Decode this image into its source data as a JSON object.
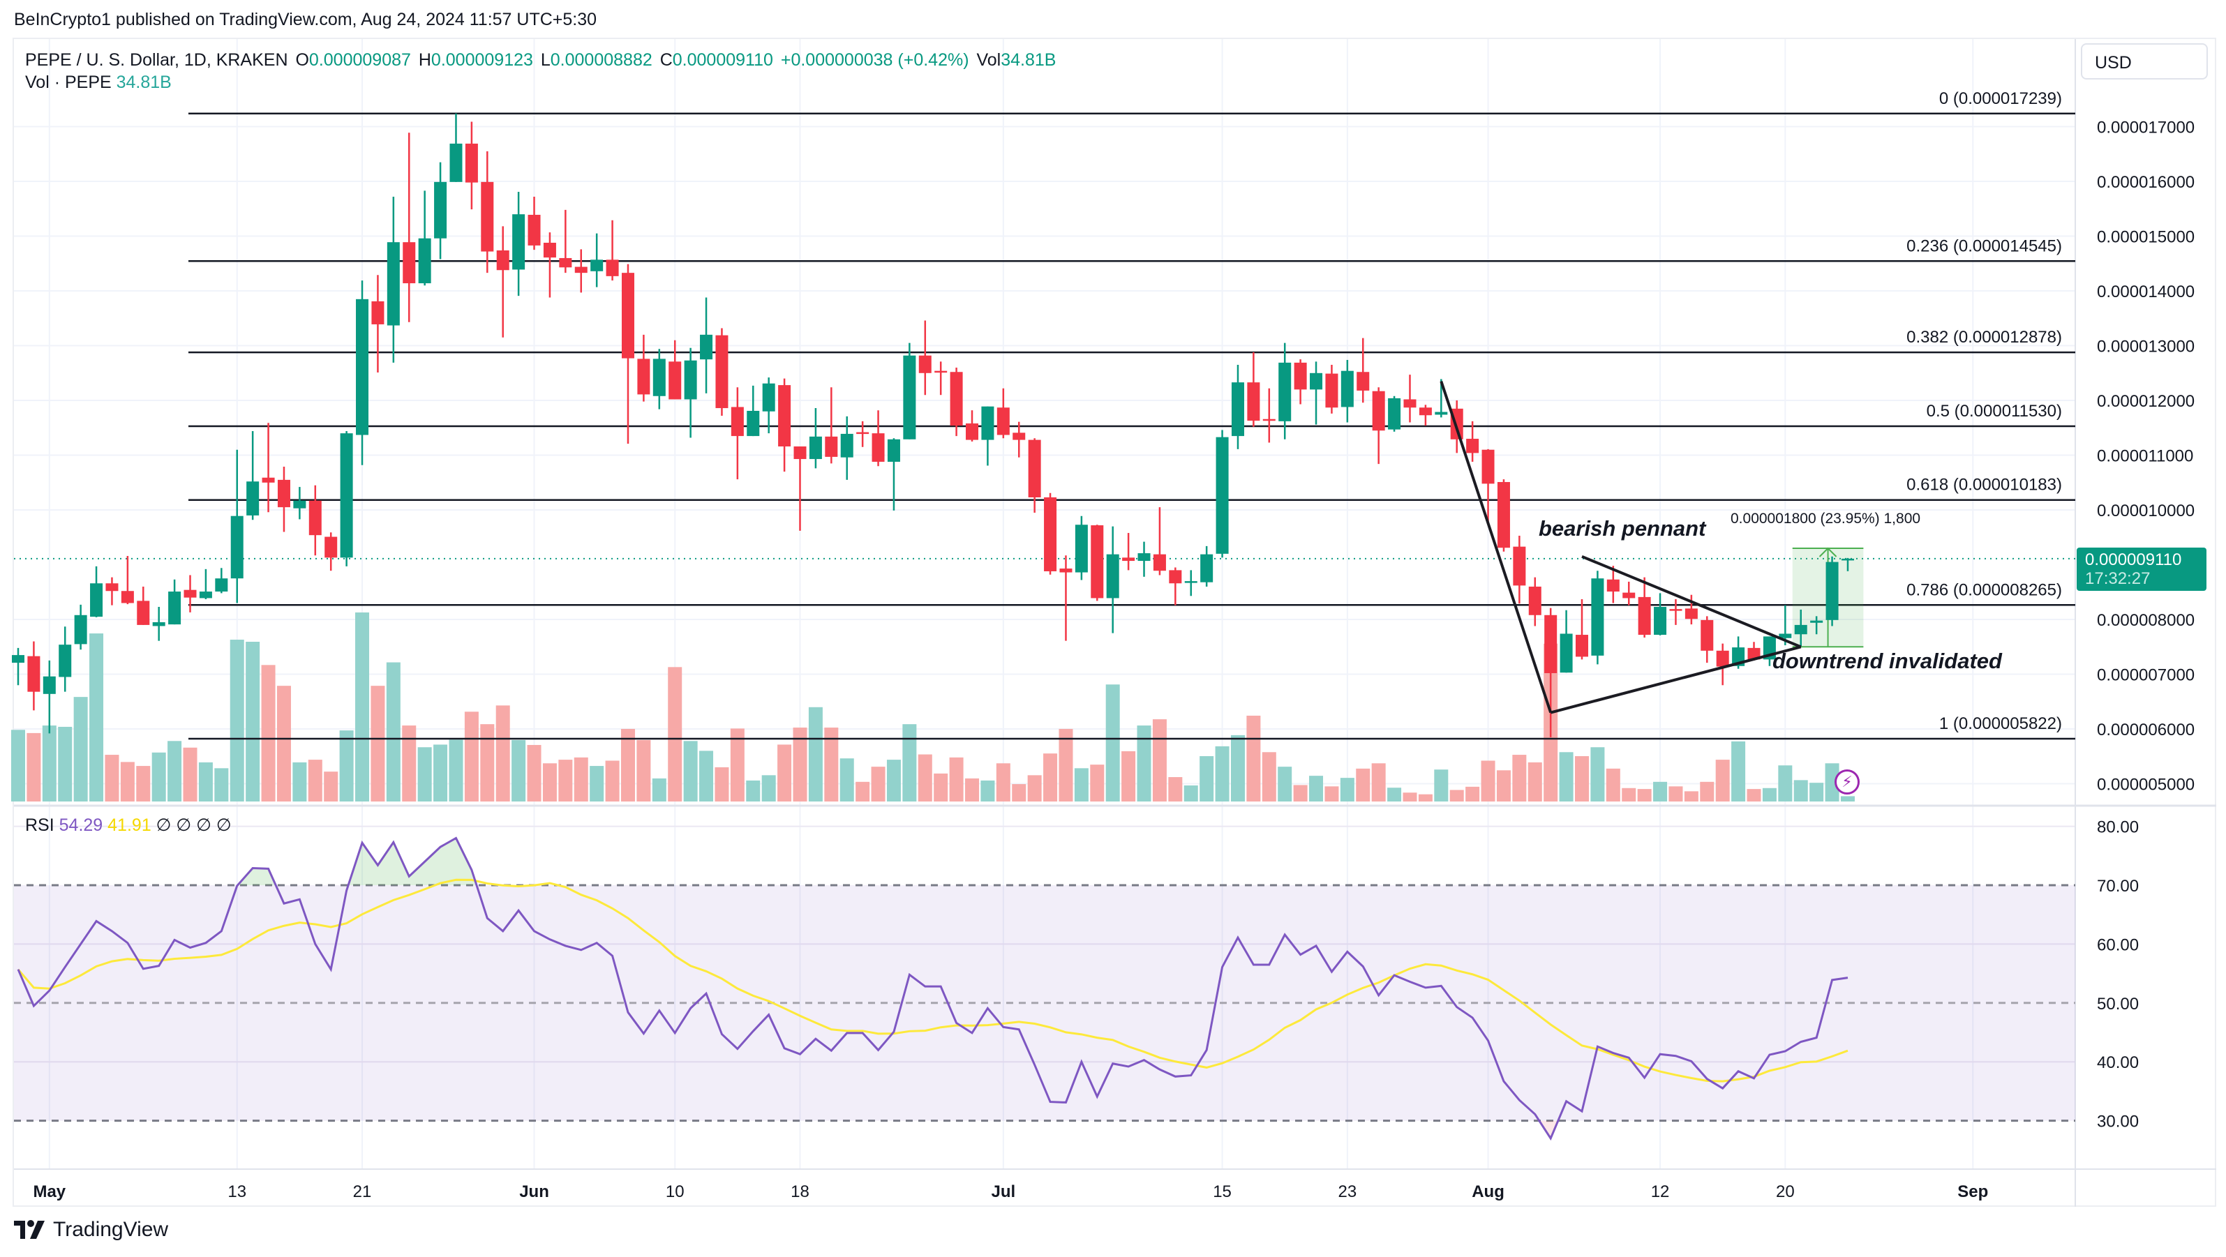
{
  "header": {
    "publish_line": "BeInCrypto1 published on TradingView.com, Aug 24, 2024 11:57 UTC+5:30",
    "symbol": "PEPE / U. S. Dollar, 1D, KRAKEN",
    "o_label": "O",
    "o_value": "0.000009087",
    "h_label": "H",
    "h_value": "0.000009123",
    "l_label": "L",
    "l_value": "0.000008882",
    "c_label": "C",
    "c_value": "0.000009110",
    "change": "+0.000000038 (+0.42%)",
    "vol_label": "Vol",
    "vol_value": "34.81B",
    "vol_pane_label": "Vol · PEPE",
    "vol_pane_value": "34.81B",
    "currency_button": "USD"
  },
  "price_tag": {
    "price": "0.000009110",
    "countdown": "17:32:27"
  },
  "rsi_legend": {
    "label": "RSI",
    "rsi_value": "54.29",
    "ma_value": "41.91",
    "hidden_values": [
      "∅",
      "∅",
      "∅",
      "∅"
    ]
  },
  "annotations": {
    "pennant": "bearish pennant",
    "invalidated": "downtrend invalidated",
    "measure": "0.000001800 (23.95%) 1,800",
    "bolt_icon": "lightning-icon"
  },
  "footer": {
    "logo_text": "TradingView"
  },
  "colors": {
    "up": "#089981",
    "down": "#f23645",
    "vol_up": "#92d2cc",
    "vol_down": "#f7a9a7",
    "rsi": "#7e57c2",
    "rsi_ma": "#fde93b",
    "fib": "#131722"
  },
  "chart_data": [
    {
      "type": "candlestick",
      "title": "PEPE / U. S. Dollar, 1D, KRAKEN",
      "start_date": "2024-04-29",
      "price_unit": "1e-6 USD",
      "ohlc": [
        [
          7.21,
          7.48,
          6.8,
          7.35
        ],
        [
          7.33,
          7.6,
          6.34,
          6.68
        ],
        [
          6.64,
          7.25,
          5.92,
          6.96
        ],
        [
          6.95,
          7.87,
          6.68,
          7.54
        ],
        [
          7.55,
          8.27,
          7.45,
          8.08
        ],
        [
          8.05,
          8.97,
          8.04,
          8.66
        ],
        [
          8.66,
          8.77,
          8.26,
          8.52
        ],
        [
          8.52,
          9.16,
          8.28,
          8.3
        ],
        [
          8.34,
          8.6,
          7.9,
          7.9
        ],
        [
          7.88,
          8.23,
          7.61,
          7.95
        ],
        [
          7.91,
          8.73,
          7.91,
          8.51
        ],
        [
          8.54,
          8.81,
          8.13,
          8.4
        ],
        [
          8.39,
          8.92,
          8.37,
          8.51
        ],
        [
          8.51,
          8.94,
          8.48,
          8.75
        ],
        [
          8.75,
          11.1,
          8.3,
          9.89
        ],
        [
          9.9,
          11.44,
          9.82,
          10.52
        ],
        [
          10.59,
          11.59,
          9.96,
          10.5
        ],
        [
          10.55,
          10.79,
          9.6,
          10.05
        ],
        [
          10.03,
          10.42,
          9.83,
          10.17
        ],
        [
          10.17,
          10.45,
          9.17,
          9.54
        ],
        [
          9.51,
          9.59,
          8.89,
          9.13
        ],
        [
          9.13,
          11.44,
          8.97,
          11.4
        ],
        [
          11.37,
          14.19,
          10.82,
          13.85
        ],
        [
          13.81,
          14.29,
          12.51,
          13.39
        ],
        [
          13.37,
          15.72,
          12.69,
          14.89
        ],
        [
          14.89,
          16.89,
          13.43,
          14.14
        ],
        [
          14.14,
          15.83,
          14.1,
          14.96
        ],
        [
          14.96,
          16.35,
          14.58,
          15.99
        ],
        [
          15.99,
          17.24,
          15.99,
          16.69
        ],
        [
          16.69,
          17.09,
          15.49,
          15.98
        ],
        [
          15.99,
          16.55,
          14.33,
          14.72
        ],
        [
          14.74,
          15.18,
          13.15,
          14.38
        ],
        [
          14.39,
          15.81,
          13.91,
          15.4
        ],
        [
          15.39,
          15.72,
          14.75,
          14.83
        ],
        [
          14.88,
          15.07,
          13.88,
          14.61
        ],
        [
          14.6,
          15.48,
          14.33,
          14.43
        ],
        [
          14.44,
          14.76,
          13.97,
          14.33
        ],
        [
          14.36,
          15.05,
          14.07,
          14.57
        ],
        [
          14.57,
          15.29,
          14.19,
          14.27
        ],
        [
          14.33,
          14.49,
          11.21,
          12.77
        ],
        [
          12.76,
          13.2,
          11.98,
          12.11
        ],
        [
          12.08,
          12.94,
          11.84,
          12.76
        ],
        [
          12.71,
          13.1,
          12.02,
          12.02
        ],
        [
          12.02,
          12.96,
          11.32,
          12.73
        ],
        [
          12.75,
          13.88,
          12.13,
          13.2
        ],
        [
          13.19,
          13.32,
          11.72,
          11.86
        ],
        [
          11.88,
          12.24,
          10.56,
          11.35
        ],
        [
          11.35,
          12.27,
          11.35,
          11.81
        ],
        [
          11.8,
          12.42,
          11.4,
          12.31
        ],
        [
          12.28,
          12.4,
          10.7,
          11.16
        ],
        [
          11.16,
          11.16,
          9.62,
          10.93
        ],
        [
          10.93,
          11.86,
          10.76,
          11.34
        ],
        [
          11.34,
          12.24,
          10.85,
          10.97
        ],
        [
          10.96,
          11.71,
          10.55,
          11.39
        ],
        [
          11.42,
          11.62,
          11.15,
          11.4
        ],
        [
          11.4,
          11.82,
          10.8,
          10.88
        ],
        [
          10.88,
          11.31,
          9.99,
          11.29
        ],
        [
          11.29,
          13.05,
          11.29,
          12.82
        ],
        [
          12.82,
          13.46,
          12.1,
          12.5
        ],
        [
          12.54,
          12.71,
          12.1,
          12.52
        ],
        [
          12.52,
          12.6,
          11.35,
          11.54
        ],
        [
          11.58,
          11.82,
          11.25,
          11.28
        ],
        [
          11.28,
          11.89,
          10.81,
          11.89
        ],
        [
          11.87,
          12.22,
          11.31,
          11.37
        ],
        [
          11.41,
          11.61,
          10.96,
          11.28
        ],
        [
          11.28,
          11.31,
          9.95,
          10.23
        ],
        [
          10.23,
          10.31,
          8.82,
          8.88
        ],
        [
          8.93,
          9.17,
          7.61,
          8.86
        ],
        [
          8.86,
          9.89,
          8.72,
          9.73
        ],
        [
          9.72,
          9.73,
          8.34,
          8.39
        ],
        [
          8.39,
          9.7,
          7.75,
          9.19
        ],
        [
          9.13,
          9.58,
          8.9,
          9.07
        ],
        [
          9.07,
          9.42,
          8.78,
          9.21
        ],
        [
          9.19,
          10.05,
          8.81,
          8.89
        ],
        [
          8.9,
          8.95,
          8.26,
          8.66
        ],
        [
          8.68,
          8.9,
          8.43,
          8.7
        ],
        [
          8.68,
          9.34,
          8.6,
          9.19
        ],
        [
          9.2,
          11.46,
          9.13,
          11.33
        ],
        [
          11.35,
          12.65,
          11.11,
          12.33
        ],
        [
          12.33,
          12.88,
          11.52,
          11.63
        ],
        [
          11.66,
          12.22,
          11.23,
          11.63
        ],
        [
          11.62,
          13.05,
          11.29,
          12.69
        ],
        [
          12.69,
          12.75,
          11.93,
          12.2
        ],
        [
          12.2,
          12.71,
          11.56,
          12.5
        ],
        [
          12.49,
          12.65,
          11.76,
          11.87
        ],
        [
          11.88,
          12.74,
          11.6,
          12.54
        ],
        [
          12.52,
          13.14,
          11.96,
          12.18
        ],
        [
          12.17,
          12.24,
          10.84,
          11.45
        ],
        [
          11.47,
          12.08,
          11.43,
          12.04
        ],
        [
          12.02,
          12.47,
          11.6,
          11.87
        ],
        [
          11.87,
          11.92,
          11.54,
          11.73
        ],
        [
          11.74,
          12.39,
          11.69,
          11.79
        ],
        [
          11.85,
          12.0,
          11.04,
          11.29
        ],
        [
          11.3,
          11.62,
          10.88,
          11.04
        ],
        [
          11.1,
          11.11,
          9.77,
          10.48
        ],
        [
          10.51,
          10.56,
          9.24,
          9.31
        ],
        [
          9.33,
          9.53,
          8.29,
          8.62
        ],
        [
          8.6,
          8.77,
          7.88,
          8.08
        ],
        [
          8.08,
          8.21,
          5.85,
          7.02
        ],
        [
          7.03,
          8.17,
          7.03,
          7.74
        ],
        [
          7.72,
          8.37,
          7.27,
          7.32
        ],
        [
          7.34,
          8.89,
          7.18,
          8.75
        ],
        [
          8.73,
          8.98,
          8.3,
          8.51
        ],
        [
          8.49,
          8.69,
          8.26,
          8.39
        ],
        [
          8.41,
          8.77,
          7.67,
          7.72
        ],
        [
          7.72,
          8.48,
          7.71,
          8.23
        ],
        [
          8.19,
          8.37,
          7.9,
          8.17
        ],
        [
          8.2,
          8.45,
          7.91,
          8.01
        ],
        [
          7.99,
          8.06,
          7.21,
          7.43
        ],
        [
          7.43,
          7.56,
          6.8,
          7.14
        ],
        [
          7.15,
          7.69,
          7.1,
          7.49
        ],
        [
          7.48,
          7.59,
          7.25,
          7.27
        ],
        [
          7.27,
          7.69,
          7.15,
          7.69
        ],
        [
          7.66,
          8.26,
          7.53,
          7.74
        ],
        [
          7.73,
          8.18,
          7.51,
          7.9
        ],
        [
          7.94,
          8.06,
          7.73,
          7.98
        ],
        [
          7.99,
          9.15,
          7.88,
          9.05
        ],
        [
          9.087,
          9.123,
          8.882,
          9.11
        ]
      ],
      "volume_relative": [
        37.9,
        36.2,
        40.2,
        39.5,
        55.3,
        88.9,
        24.7,
        20.9,
        18.8,
        25.9,
        32,
        28.5,
        20.7,
        17.6,
        85.6,
        84.5,
        72.2,
        61.2,
        20.7,
        22.1,
        15.8,
        37.6,
        100,
        61.2,
        73.6,
        40.2,
        28.7,
        30.1,
        32.7,
        47.5,
        40.9,
        50.8,
        32.5,
        29.9,
        20.2,
        22.1,
        23.3,
        18.8,
        21.6,
        38.4,
        32.5,
        12.2,
        71.1,
        32,
        26.8,
        18.1,
        38.6,
        11.1,
        13.9,
        30.1,
        39.1,
        49.9,
        39.1,
        22.8,
        10.4,
        18.4,
        22.1,
        40.9,
        24.9,
        14.8,
        23.3,
        12.2,
        11.1,
        20.2,
        9.2,
        13.9,
        25.4,
        38.4,
        17.6,
        19.5,
        61.9,
        26.6,
        40.2,
        43.5,
        12.9,
        8.5,
        24,
        29.2,
        35.1,
        45.4,
        26.1,
        18.4,
        8.7,
        13.6,
        8,
        12.5,
        17.4,
        20.2,
        7.3,
        4.7,
        3.8,
        16.9,
        6.1,
        7.8,
        21.6,
        16.5,
        24.7,
        20.7,
        83.5,
        26.1,
        24,
        28.7,
        17.4,
        7.1,
        6.6,
        10.4,
        8,
        5.4,
        10.4,
        22.1,
        31.8,
        6.6,
        7.1,
        19.1,
        11.3,
        9.9,
        20.2,
        2.8
      ],
      "y_ticks": [
        "0.000017000",
        "0.000016000",
        "0.000015000",
        "0.000014000",
        "0.000013000",
        "0.000012000",
        "0.000011000",
        "0.000010000",
        "0.000008000",
        "0.000007000",
        "0.000006000",
        "0.000005000"
      ],
      "y_tick_values": [
        17,
        16,
        15,
        14,
        13,
        12,
        11,
        10,
        8,
        7,
        6,
        5
      ],
      "x_ticks": [
        {
          "label": "May",
          "date": "2024-05-01",
          "major": true
        },
        {
          "label": "13",
          "date": "2024-05-13",
          "major": false
        },
        {
          "label": "21",
          "date": "2024-05-21",
          "major": false
        },
        {
          "label": "Jun",
          "date": "2024-06-01",
          "major": true
        },
        {
          "label": "10",
          "date": "2024-06-10",
          "major": false
        },
        {
          "label": "18",
          "date": "2024-06-18",
          "major": false
        },
        {
          "label": "Jul",
          "date": "2024-07-01",
          "major": true
        },
        {
          "label": "15",
          "date": "2024-07-15",
          "major": false
        },
        {
          "label": "23",
          "date": "2024-07-23",
          "major": false
        },
        {
          "label": "Aug",
          "date": "2024-08-01",
          "major": true
        },
        {
          "label": "12",
          "date": "2024-08-12",
          "major": false
        },
        {
          "label": "20",
          "date": "2024-08-20",
          "major": false
        },
        {
          "label": "Sep",
          "date": "2024-09-01",
          "major": true
        }
      ],
      "fib_levels": [
        {
          "label": "0 (0.000017239)",
          "price": 17.239
        },
        {
          "label": "0.236 (0.000014545)",
          "price": 14.545
        },
        {
          "label": "0.382 (0.000012878)",
          "price": 12.878
        },
        {
          "label": "0.5 (0.000011530)",
          "price": 11.53
        },
        {
          "label": "0.618 (0.000010183)",
          "price": 10.183
        },
        {
          "label": "0.786 (0.000008265)",
          "price": 8.265
        },
        {
          "label": "1 (0.000005822)",
          "price": 5.822
        }
      ],
      "current_price": 9.11,
      "trendlines": [
        {
          "name": "downtrend",
          "from": {
            "date": "2024-07-29",
            "price": 12.35
          },
          "to": {
            "date": "2024-08-05",
            "price": 6.3
          }
        },
        {
          "name": "pennant-upper",
          "from": {
            "date": "2024-08-07",
            "price": 9.15
          },
          "to": {
            "date": "2024-08-21",
            "price": 7.5
          }
        },
        {
          "name": "pennant-lower",
          "from": {
            "date": "2024-08-05",
            "price": 6.3
          },
          "to": {
            "date": "2024-08-21",
            "price": 7.5
          }
        }
      ],
      "measure": {
        "from_date": "2024-08-21",
        "to_date": "2024-08-25",
        "from_price": 7.5,
        "to_price": 9.3
      }
    },
    {
      "type": "line",
      "title": "RSI",
      "ylim": [
        25,
        82
      ],
      "y_ticks": [
        "80.00",
        "70.00",
        "60.00",
        "50.00",
        "40.00",
        "30.00"
      ],
      "y_tick_values": [
        80,
        70,
        60,
        50,
        40,
        30
      ],
      "bands": {
        "upper": 70,
        "middle": 50,
        "lower": 30
      },
      "ma_period": 14,
      "rsi": [
        55.7,
        49.5,
        52.1,
        56.1,
        60.0,
        63.9,
        62.2,
        60.2,
        55.8,
        56.3,
        60.7,
        59.4,
        60.2,
        62.2,
        69.9,
        72.9,
        72.8,
        66.9,
        67.6,
        60.0,
        55.7,
        69.1,
        77.2,
        73.4,
        77.3,
        71.5,
        74.0,
        76.5,
        78.0,
        72.6,
        64.4,
        62.2,
        65.7,
        62.2,
        60.8,
        59.7,
        59.0,
        60.2,
        58.0,
        48.4,
        44.8,
        48.7,
        44.9,
        49.1,
        51.6,
        44.7,
        42.2,
        45.2,
        48.0,
        42.3,
        41.3,
        43.9,
        41.9,
        44.9,
        44.9,
        42.0,
        45.1,
        54.8,
        52.8,
        52.8,
        46.6,
        44.9,
        49.1,
        45.9,
        45.5,
        39.5,
        33.2,
        33.1,
        40.0,
        34.1,
        39.7,
        39.2,
        40.3,
        38.7,
        37.5,
        37.7,
        42.0,
        56.1,
        61.1,
        56.5,
        56.5,
        61.6,
        58.2,
        59.7,
        55.3,
        58.7,
        56.2,
        51.3,
        54.7,
        53.6,
        52.6,
        52.9,
        49.3,
        47.5,
        43.6,
        36.7,
        33.5,
        31.1,
        27.0,
        33.3,
        31.6,
        42.6,
        41.5,
        40.7,
        37.3,
        41.3,
        41.0,
        40.1,
        37.1,
        35.5,
        38.4,
        37.2,
        41.2,
        41.8,
        43.4,
        44.1,
        53.9,
        54.29
      ]
    }
  ]
}
